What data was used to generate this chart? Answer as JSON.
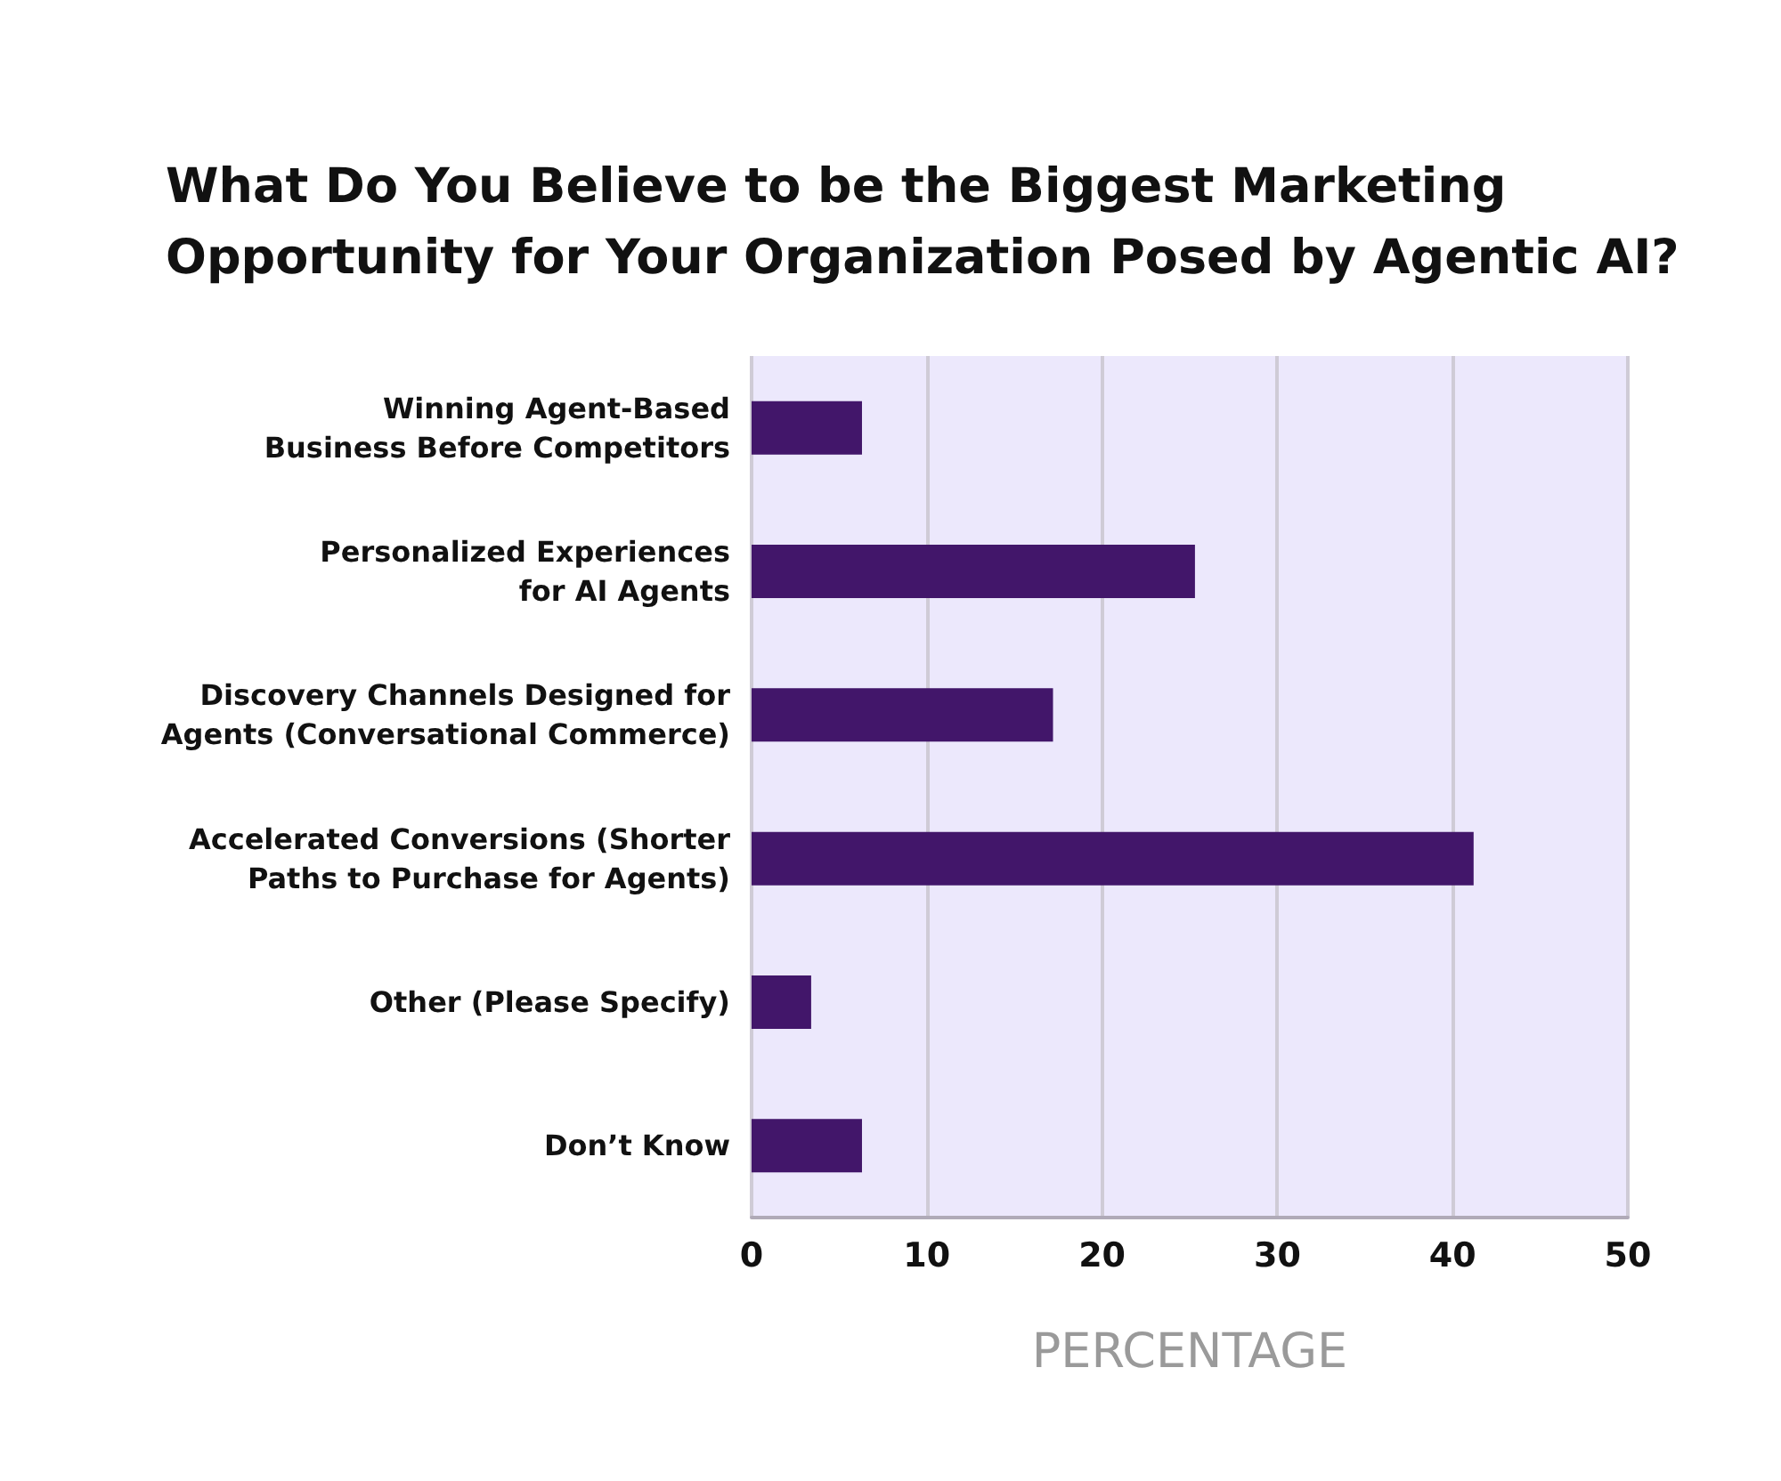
{
  "chart_data": {
    "type": "bar",
    "orientation": "horizontal",
    "title": "What Do You Believe to be the Biggest Marketing\nOpportunity for Your Organization Posed by Agentic AI?",
    "xlabel": "PERCENTAGE",
    "categories": [
      "Winning Agent-Based\nBusiness Before Competitors",
      "Personalized Experiences\nfor AI Agents",
      "Discovery Channels Designed for\nAgents (Conversational Commerce)",
      "Accelerated Conversions (Shorter\nPaths to Purchase for Agents)",
      "Other (Please Specify)",
      "Don’t Know"
    ],
    "values": [
      6.3,
      25.3,
      17.2,
      41.2,
      3.4,
      6.3
    ],
    "color": "#42166a",
    "xlim": [
      0,
      50
    ],
    "xticks": [
      0,
      10,
      20,
      30,
      40,
      50
    ],
    "grid": "x"
  }
}
